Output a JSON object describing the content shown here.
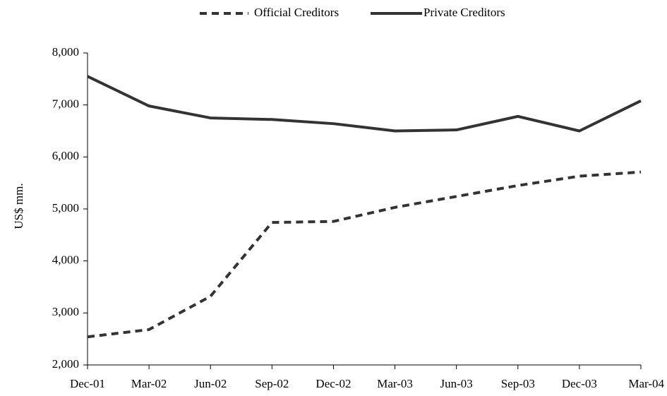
{
  "chart_data": {
    "type": "line",
    "title": "",
    "xlabel": "",
    "ylabel": "US$ mm.",
    "categories": [
      "Dec-01",
      "Mar-02",
      "Jun-02",
      "Sep-02",
      "Dec-02",
      "Mar-03",
      "Jun-03",
      "Sep-03",
      "Dec-03",
      "Mar-04"
    ],
    "ylim": [
      2000,
      8000
    ],
    "yticks": [
      2000,
      3000,
      4000,
      5000,
      6000,
      7000,
      8000
    ],
    "ytick_labels": [
      "2,000",
      "3,000",
      "4,000",
      "5,000",
      "6,000",
      "7,000",
      "8,000"
    ],
    "grid": false,
    "legend_position": "top-center",
    "series": [
      {
        "name": "Official Creditors",
        "style": "dashed",
        "color": "#333333",
        "values": [
          2540,
          2680,
          3320,
          4740,
          4760,
          5030,
          5240,
          5450,
          5630,
          5710
        ]
      },
      {
        "name": "Private Creditors",
        "style": "solid",
        "color": "#333333",
        "values": [
          7550,
          6980,
          6750,
          6720,
          6640,
          6500,
          6520,
          6780,
          6500,
          7080
        ]
      }
    ]
  }
}
